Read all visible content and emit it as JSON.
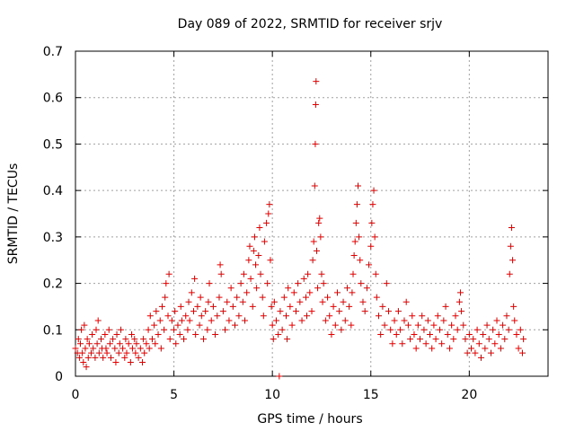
{
  "chart_data": {
    "type": "scatter",
    "title": "Day 089 of 2022, SRMTID for receiver srjv",
    "xlabel": "GPS time / hours",
    "ylabel": "SRMTID / TECUs",
    "xlim": [
      0,
      24
    ],
    "ylim": [
      0,
      0.7
    ],
    "xticks": [
      0,
      5,
      10,
      15,
      20
    ],
    "xtick_labels": [
      "0",
      "5",
      "10",
      "15",
      "20"
    ],
    "yticks": [
      0,
      0.1,
      0.2,
      0.3,
      0.4,
      0.5,
      0.6,
      0.7
    ],
    "ytick_labels": [
      "0",
      "0.1",
      "0.2",
      "0.3",
      "0.4",
      "0.5",
      "0.6",
      "0.7"
    ],
    "grid": true,
    "marker": "plus",
    "color": "#e00000",
    "series": [
      {
        "name": "SRMTID",
        "points": [
          [
            0.0,
            0.06
          ],
          [
            0.1,
            0.05
          ],
          [
            0.15,
            0.08
          ],
          [
            0.2,
            0.04
          ],
          [
            0.25,
            0.07
          ],
          [
            0.3,
            0.1
          ],
          [
            0.35,
            0.05
          ],
          [
            0.4,
            0.03
          ],
          [
            0.45,
            0.11
          ],
          [
            0.5,
            0.06
          ],
          [
            0.55,
            0.02
          ],
          [
            0.6,
            0.08
          ],
          [
            0.65,
            0.04
          ],
          [
            0.7,
            0.07
          ],
          [
            0.8,
            0.05
          ],
          [
            0.85,
            0.09
          ],
          [
            0.9,
            0.06
          ],
          [
            1.0,
            0.04
          ],
          [
            1.05,
            0.1
          ],
          [
            1.1,
            0.07
          ],
          [
            1.15,
            0.12
          ],
          [
            1.2,
            0.05
          ],
          [
            1.3,
            0.08
          ],
          [
            1.35,
            0.06
          ],
          [
            1.4,
            0.04
          ],
          [
            1.5,
            0.09
          ],
          [
            1.55,
            0.06
          ],
          [
            1.6,
            0.05
          ],
          [
            1.7,
            0.1
          ],
          [
            1.75,
            0.07
          ],
          [
            1.8,
            0.04
          ],
          [
            1.9,
            0.08
          ],
          [
            2.0,
            0.06
          ],
          [
            2.05,
            0.03
          ],
          [
            2.1,
            0.09
          ],
          [
            2.2,
            0.05
          ],
          [
            2.25,
            0.07
          ],
          [
            2.3,
            0.1
          ],
          [
            2.4,
            0.06
          ],
          [
            2.5,
            0.04
          ],
          [
            2.55,
            0.08
          ],
          [
            2.6,
            0.05
          ],
          [
            2.7,
            0.07
          ],
          [
            2.8,
            0.03
          ],
          [
            2.85,
            0.09
          ],
          [
            2.9,
            0.06
          ],
          [
            3.0,
            0.08
          ],
          [
            3.05,
            0.05
          ],
          [
            3.1,
            0.07
          ],
          [
            3.2,
            0.04
          ],
          [
            3.3,
            0.06
          ],
          [
            3.4,
            0.03
          ],
          [
            3.45,
            0.08
          ],
          [
            3.5,
            0.05
          ],
          [
            3.6,
            0.07
          ],
          [
            3.7,
            0.1
          ],
          [
            3.75,
            0.06
          ],
          [
            3.8,
            0.13
          ],
          [
            3.9,
            0.08
          ],
          [
            4.0,
            0.11
          ],
          [
            4.05,
            0.07
          ],
          [
            4.1,
            0.14
          ],
          [
            4.2,
            0.09
          ],
          [
            4.3,
            0.12
          ],
          [
            4.35,
            0.06
          ],
          [
            4.4,
            0.15
          ],
          [
            4.5,
            0.1
          ],
          [
            4.55,
            0.17
          ],
          [
            4.6,
            0.2
          ],
          [
            4.7,
            0.13
          ],
          [
            4.75,
            0.22
          ],
          [
            4.8,
            0.08
          ],
          [
            4.9,
            0.12
          ],
          [
            5.0,
            0.1
          ],
          [
            5.05,
            0.14
          ],
          [
            5.1,
            0.07
          ],
          [
            5.2,
            0.11
          ],
          [
            5.3,
            0.09
          ],
          [
            5.35,
            0.15
          ],
          [
            5.4,
            0.12
          ],
          [
            5.5,
            0.08
          ],
          [
            5.6,
            0.13
          ],
          [
            5.7,
            0.1
          ],
          [
            5.75,
            0.16
          ],
          [
            5.8,
            0.12
          ],
          [
            5.9,
            0.18
          ],
          [
            6.0,
            0.14
          ],
          [
            6.05,
            0.21
          ],
          [
            6.1,
            0.09
          ],
          [
            6.2,
            0.15
          ],
          [
            6.3,
            0.11
          ],
          [
            6.35,
            0.17
          ],
          [
            6.4,
            0.13
          ],
          [
            6.5,
            0.08
          ],
          [
            6.6,
            0.14
          ],
          [
            6.7,
            0.1
          ],
          [
            6.75,
            0.16
          ],
          [
            6.8,
            0.2
          ],
          [
            6.9,
            0.12
          ],
          [
            7.0,
            0.15
          ],
          [
            7.1,
            0.09
          ],
          [
            7.2,
            0.13
          ],
          [
            7.3,
            0.17
          ],
          [
            7.35,
            0.24
          ],
          [
            7.4,
            0.22
          ],
          [
            7.5,
            0.14
          ],
          [
            7.6,
            0.1
          ],
          [
            7.7,
            0.16
          ],
          [
            7.8,
            0.12
          ],
          [
            7.9,
            0.19
          ],
          [
            8.0,
            0.15
          ],
          [
            8.1,
            0.11
          ],
          [
            8.2,
            0.17
          ],
          [
            8.3,
            0.13
          ],
          [
            8.4,
            0.2
          ],
          [
            8.5,
            0.16
          ],
          [
            8.55,
            0.22
          ],
          [
            8.6,
            0.12
          ],
          [
            8.7,
            0.18
          ],
          [
            8.8,
            0.25
          ],
          [
            8.85,
            0.28
          ],
          [
            8.9,
            0.21
          ],
          [
            9.0,
            0.15
          ],
          [
            9.05,
            0.27
          ],
          [
            9.1,
            0.3
          ],
          [
            9.15,
            0.24
          ],
          [
            9.2,
            0.19
          ],
          [
            9.3,
            0.26
          ],
          [
            9.35,
            0.32
          ],
          [
            9.4,
            0.22
          ],
          [
            9.5,
            0.17
          ],
          [
            9.55,
            0.13
          ],
          [
            9.6,
            0.29
          ],
          [
            9.7,
            0.33
          ],
          [
            9.75,
            0.2
          ],
          [
            9.8,
            0.35
          ],
          [
            9.85,
            0.37
          ],
          [
            9.9,
            0.25
          ],
          [
            9.95,
            0.15
          ],
          [
            10.0,
            0.11
          ],
          [
            10.05,
            0.08
          ],
          [
            10.1,
            0.16
          ],
          [
            10.2,
            0.12
          ],
          [
            10.3,
            0.09
          ],
          [
            10.35,
            0.0
          ],
          [
            10.4,
            0.14
          ],
          [
            10.5,
            0.1
          ],
          [
            10.6,
            0.17
          ],
          [
            10.7,
            0.13
          ],
          [
            10.75,
            0.08
          ],
          [
            10.8,
            0.19
          ],
          [
            10.9,
            0.15
          ],
          [
            11.0,
            0.11
          ],
          [
            11.1,
            0.18
          ],
          [
            11.2,
            0.14
          ],
          [
            11.3,
            0.2
          ],
          [
            11.4,
            0.16
          ],
          [
            11.5,
            0.12
          ],
          [
            11.6,
            0.21
          ],
          [
            11.7,
            0.17
          ],
          [
            11.75,
            0.13
          ],
          [
            11.8,
            0.22
          ],
          [
            11.9,
            0.18
          ],
          [
            12.0,
            0.14
          ],
          [
            12.05,
            0.25
          ],
          [
            12.1,
            0.29
          ],
          [
            12.15,
            0.41
          ],
          [
            12.18,
            0.5
          ],
          [
            12.2,
            0.585
          ],
          [
            12.22,
            0.635
          ],
          [
            12.25,
            0.27
          ],
          [
            12.3,
            0.19
          ],
          [
            12.35,
            0.33
          ],
          [
            12.4,
            0.34
          ],
          [
            12.45,
            0.3
          ],
          [
            12.5,
            0.22
          ],
          [
            12.55,
            0.16
          ],
          [
            12.6,
            0.2
          ],
          [
            12.7,
            0.12
          ],
          [
            12.8,
            0.17
          ],
          [
            12.9,
            0.13
          ],
          [
            13.0,
            0.09
          ],
          [
            13.1,
            0.15
          ],
          [
            13.2,
            0.11
          ],
          [
            13.3,
            0.18
          ],
          [
            13.4,
            0.14
          ],
          [
            13.5,
            0.1
          ],
          [
            13.6,
            0.16
          ],
          [
            13.7,
            0.12
          ],
          [
            13.8,
            0.19
          ],
          [
            13.9,
            0.15
          ],
          [
            14.0,
            0.11
          ],
          [
            14.05,
            0.18
          ],
          [
            14.1,
            0.22
          ],
          [
            14.15,
            0.26
          ],
          [
            14.2,
            0.29
          ],
          [
            14.25,
            0.33
          ],
          [
            14.3,
            0.37
          ],
          [
            14.35,
            0.41
          ],
          [
            14.4,
            0.3
          ],
          [
            14.45,
            0.25
          ],
          [
            14.5,
            0.2
          ],
          [
            14.6,
            0.16
          ],
          [
            14.7,
            0.14
          ],
          [
            14.8,
            0.19
          ],
          [
            14.9,
            0.24
          ],
          [
            15.0,
            0.28
          ],
          [
            15.05,
            0.33
          ],
          [
            15.1,
            0.37
          ],
          [
            15.15,
            0.4
          ],
          [
            15.2,
            0.3
          ],
          [
            15.25,
            0.22
          ],
          [
            15.3,
            0.17
          ],
          [
            15.4,
            0.13
          ],
          [
            15.5,
            0.09
          ],
          [
            15.6,
            0.15
          ],
          [
            15.7,
            0.11
          ],
          [
            15.8,
            0.2
          ],
          [
            15.9,
            0.14
          ],
          [
            16.0,
            0.1
          ],
          [
            16.1,
            0.07
          ],
          [
            16.2,
            0.12
          ],
          [
            16.3,
            0.09
          ],
          [
            16.4,
            0.14
          ],
          [
            16.5,
            0.1
          ],
          [
            16.6,
            0.07
          ],
          [
            16.7,
            0.12
          ],
          [
            16.8,
            0.16
          ],
          [
            16.9,
            0.11
          ],
          [
            17.0,
            0.08
          ],
          [
            17.1,
            0.13
          ],
          [
            17.2,
            0.09
          ],
          [
            17.3,
            0.06
          ],
          [
            17.4,
            0.11
          ],
          [
            17.5,
            0.08
          ],
          [
            17.6,
            0.13
          ],
          [
            17.7,
            0.1
          ],
          [
            17.8,
            0.07
          ],
          [
            17.9,
            0.12
          ],
          [
            18.0,
            0.09
          ],
          [
            18.1,
            0.06
          ],
          [
            18.2,
            0.11
          ],
          [
            18.3,
            0.08
          ],
          [
            18.4,
            0.13
          ],
          [
            18.5,
            0.1
          ],
          [
            18.6,
            0.07
          ],
          [
            18.7,
            0.12
          ],
          [
            18.8,
            0.15
          ],
          [
            18.9,
            0.09
          ],
          [
            19.0,
            0.06
          ],
          [
            19.1,
            0.11
          ],
          [
            19.2,
            0.08
          ],
          [
            19.3,
            0.13
          ],
          [
            19.4,
            0.1
          ],
          [
            19.5,
            0.16
          ],
          [
            19.55,
            0.18
          ],
          [
            19.6,
            0.14
          ],
          [
            19.7,
            0.11
          ],
          [
            19.8,
            0.08
          ],
          [
            19.9,
            0.05
          ],
          [
            20.0,
            0.09
          ],
          [
            20.1,
            0.06
          ],
          [
            20.2,
            0.08
          ],
          [
            20.3,
            0.05
          ],
          [
            20.4,
            0.1
          ],
          [
            20.5,
            0.07
          ],
          [
            20.6,
            0.04
          ],
          [
            20.7,
            0.09
          ],
          [
            20.8,
            0.06
          ],
          [
            20.9,
            0.11
          ],
          [
            21.0,
            0.08
          ],
          [
            21.1,
            0.05
          ],
          [
            21.2,
            0.1
          ],
          [
            21.3,
            0.07
          ],
          [
            21.4,
            0.12
          ],
          [
            21.5,
            0.09
          ],
          [
            21.6,
            0.06
          ],
          [
            21.7,
            0.11
          ],
          [
            21.8,
            0.08
          ],
          [
            21.9,
            0.13
          ],
          [
            22.0,
            0.1
          ],
          [
            22.05,
            0.22
          ],
          [
            22.1,
            0.28
          ],
          [
            22.15,
            0.32
          ],
          [
            22.2,
            0.25
          ],
          [
            22.25,
            0.15
          ],
          [
            22.3,
            0.12
          ],
          [
            22.4,
            0.09
          ],
          [
            22.5,
            0.06
          ],
          [
            22.6,
            0.1
          ],
          [
            22.7,
            0.05
          ],
          [
            22.75,
            0.08
          ]
        ]
      }
    ]
  }
}
